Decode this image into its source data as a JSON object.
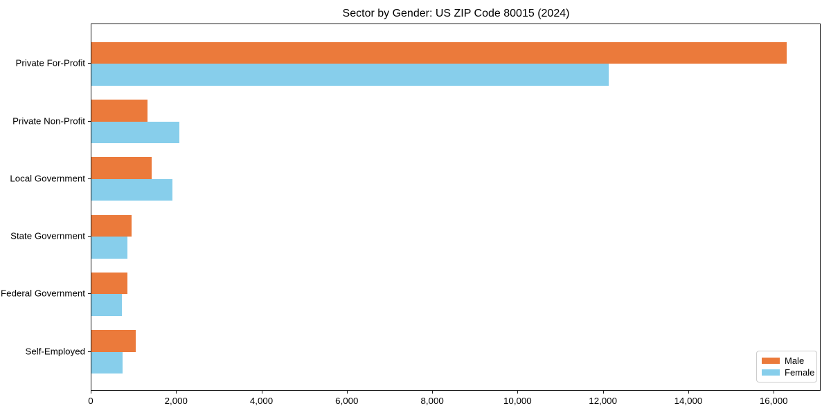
{
  "chart_data": {
    "type": "bar",
    "orientation": "horizontal",
    "title": "Sector by Gender: US ZIP Code 80015 (2024)",
    "categories": [
      "Private For-Profit",
      "Private Non-Profit",
      "Local Government",
      "State Government",
      "Federal Government",
      "Self-Employed"
    ],
    "series": [
      {
        "name": "Male",
        "color": "#EB7A3B",
        "values": [
          16290,
          1310,
          1410,
          940,
          845,
          1040
        ]
      },
      {
        "name": "Female",
        "color": "#87CEEB",
        "values": [
          12120,
          2060,
          1900,
          845,
          715,
          730
        ]
      }
    ],
    "xlabel": "",
    "ylabel": "",
    "xlim": [
      0,
      17100
    ],
    "xticks": [
      0,
      2000,
      4000,
      6000,
      8000,
      10000,
      12000,
      14000,
      16000
    ],
    "xtick_labels": [
      "0",
      "2,000",
      "4,000",
      "6,000",
      "8,000",
      "10,000",
      "12,000",
      "14,000",
      "16,000"
    ],
    "grid": false,
    "legend": {
      "position": "lower right",
      "entries": [
        "Male",
        "Female"
      ]
    },
    "colors": {
      "spine": "#1a1a1a",
      "background": "#ffffff",
      "legend_border": "#cccccc"
    }
  }
}
